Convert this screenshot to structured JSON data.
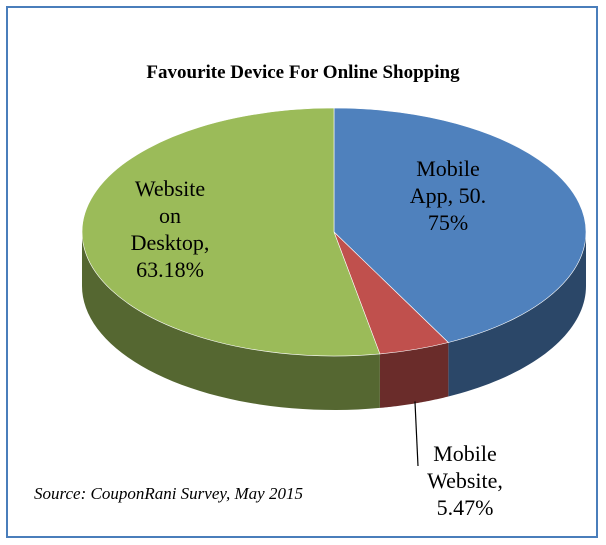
{
  "chart_data": {
    "type": "pie",
    "title": "Favourite Device For Online Shopping",
    "slices": [
      {
        "label": "Mobile App",
        "value_label": "50.75%",
        "value": 50.75,
        "color": "#4f81bd"
      },
      {
        "label": "Mobile Website",
        "value_label": "5.47%",
        "value": 5.47,
        "color": "#c0504d"
      },
      {
        "label": "Website on Desktop",
        "value_label": "63.18%",
        "value": 63.18,
        "color": "#9bbb59"
      }
    ],
    "style": "3d"
  },
  "labels": {
    "app": "Mobile\nApp, 50.\n75%",
    "mweb": "Mobile\nWebsite,\n5.47%",
    "desktop": "Website\non\nDesktop,\n63.18%"
  },
  "source": "Source: CouponRani Survey, May 2015"
}
